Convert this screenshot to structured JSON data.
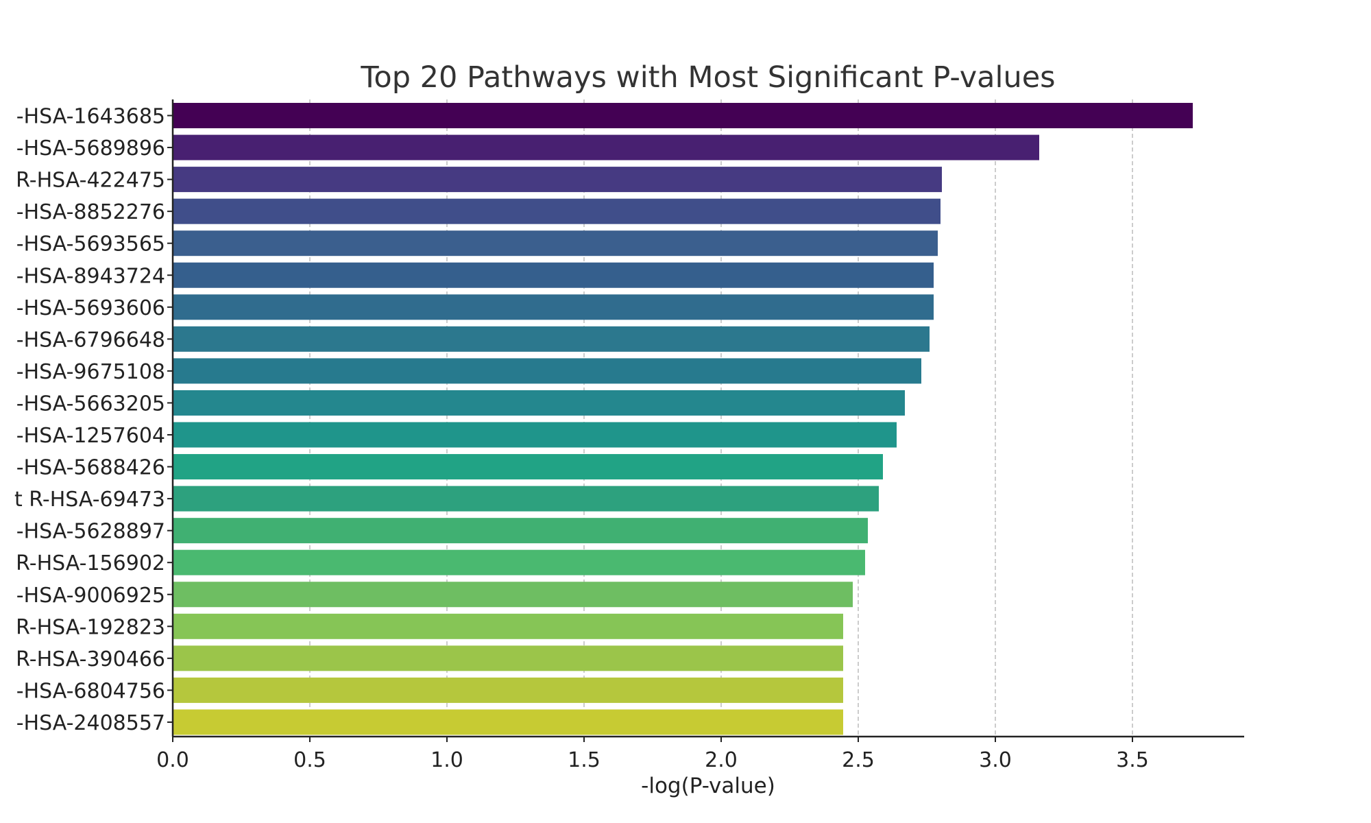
{
  "chart_data": {
    "type": "bar",
    "orientation": "horizontal",
    "title": "Top 20 Pathways with Most Significant P-values",
    "xlabel": "-log(P-value)",
    "ylabel": "",
    "xlim": [
      0,
      3.9
    ],
    "xticks": [
      "0.0",
      "0.5",
      "1.0",
      "1.5",
      "2.0",
      "2.5",
      "3.0",
      "3.5"
    ],
    "grid": "x-dashed",
    "categories": [
      "-HSA-1643685",
      "-HSA-5689896",
      "R-HSA-422475",
      "-HSA-8852276",
      "-HSA-5693565",
      "-HSA-8943724",
      "-HSA-5693606",
      "-HSA-6796648",
      "-HSA-9675108",
      "-HSA-5663205",
      "-HSA-1257604",
      "-HSA-5688426",
      "t R-HSA-69473",
      "-HSA-5628897",
      "R-HSA-156902",
      "-HSA-9006925",
      "R-HSA-192823",
      "R-HSA-390466",
      "-HSA-6804756",
      "-HSA-2408557"
    ],
    "values": [
      3.72,
      3.16,
      2.805,
      2.8,
      2.79,
      2.775,
      2.775,
      2.76,
      2.73,
      2.67,
      2.64,
      2.59,
      2.575,
      2.535,
      2.525,
      2.48,
      2.445,
      2.445,
      2.445,
      2.445
    ],
    "colors": [
      "#440154",
      "#482071",
      "#463a82",
      "#404e8a",
      "#3b5f8e",
      "#355f8d",
      "#306c8e",
      "#2c788e",
      "#277a8e",
      "#24878e",
      "#1f958b",
      "#21a385",
      "#2da17e",
      "#40b072",
      "#4ab970",
      "#6ebe62",
      "#86c556",
      "#9bc54a",
      "#b5c73d",
      "#c7cb33"
    ]
  }
}
